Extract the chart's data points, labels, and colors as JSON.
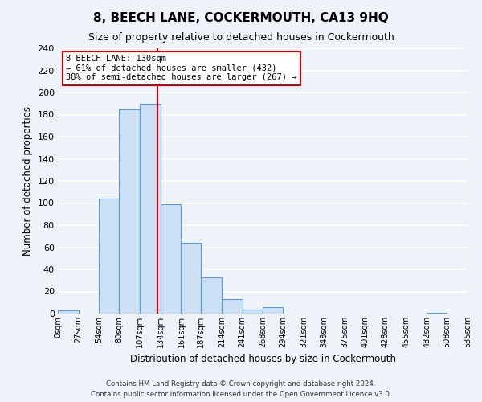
{
  "title": "8, BEECH LANE, COCKERMOUTH, CA13 9HQ",
  "subtitle": "Size of property relative to detached houses in Cockermouth",
  "xlabel": "Distribution of detached houses by size in Cockermouth",
  "ylabel": "Number of detached properties",
  "bin_edges": [
    0,
    27,
    54,
    80,
    107,
    134,
    161,
    187,
    214,
    241,
    268,
    294,
    321,
    348,
    375,
    401,
    428,
    455,
    482,
    508,
    535
  ],
  "bin_labels": [
    "0sqm",
    "27sqm",
    "54sqm",
    "80sqm",
    "107sqm",
    "134sqm",
    "161sqm",
    "187sqm",
    "214sqm",
    "241sqm",
    "268sqm",
    "294sqm",
    "321sqm",
    "348sqm",
    "375sqm",
    "401sqm",
    "428sqm",
    "455sqm",
    "482sqm",
    "508sqm",
    "535sqm"
  ],
  "counts": [
    3,
    0,
    104,
    185,
    190,
    99,
    64,
    33,
    13,
    4,
    6,
    0,
    0,
    0,
    0,
    0,
    0,
    0,
    1,
    0
  ],
  "bar_color": "#cce0f5",
  "bar_edge_color": "#5b9bd5",
  "property_value": 130,
  "vline_color": "#cc0000",
  "annotation_line1": "8 BEECH LANE: 130sqm",
  "annotation_line2": "← 61% of detached houses are smaller (432)",
  "annotation_line3": "38% of semi-detached houses are larger (267) →",
  "annotation_box_color": "#ffffff",
  "annotation_box_edge_color": "#cc0000",
  "ylim": [
    0,
    240
  ],
  "yticks": [
    0,
    20,
    40,
    60,
    80,
    100,
    120,
    140,
    160,
    180,
    200,
    220,
    240
  ],
  "footer1": "Contains HM Land Registry data © Crown copyright and database right 2024.",
  "footer2": "Contains public sector information licensed under the Open Government Licence v3.0.",
  "background_color": "#eef2f9",
  "grid_color": "#ffffff",
  "title_fontsize": 11,
  "subtitle_fontsize": 9
}
